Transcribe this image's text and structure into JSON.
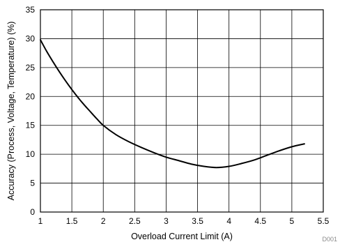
{
  "chart_data": {
    "type": "line",
    "title": "",
    "xlabel": "Overload Current Limit (A)",
    "ylabel": "Accuracy (Process, Voltage, Temperature) (%)",
    "xlim": [
      1,
      5.5
    ],
    "ylim": [
      0,
      35
    ],
    "x_ticks": [
      "1",
      "1.5",
      "2",
      "2.5",
      "3",
      "3.5",
      "4",
      "4.5",
      "5",
      "5.5"
    ],
    "y_ticks": [
      "0",
      "5",
      "10",
      "15",
      "20",
      "25",
      "30",
      "35"
    ],
    "grid": true,
    "legend": "none",
    "series": [
      {
        "x": [
          1.0,
          1.1,
          1.2,
          1.3,
          1.4,
          1.5,
          1.6,
          1.7,
          1.8,
          1.9,
          2.0,
          2.2,
          2.4,
          2.6,
          2.8,
          3.0,
          3.2,
          3.4,
          3.6,
          3.8,
          4.0,
          4.2,
          4.4,
          4.6,
          4.8,
          5.0,
          5.2
        ],
        "y": [
          29.8,
          27.8,
          26.0,
          24.3,
          22.7,
          21.2,
          19.8,
          18.5,
          17.3,
          16.1,
          15.0,
          13.4,
          12.2,
          11.2,
          10.3,
          9.5,
          8.9,
          8.3,
          7.9,
          7.7,
          7.9,
          8.4,
          9.0,
          9.8,
          10.6,
          11.3,
          11.8
        ],
        "color": "#000000"
      }
    ]
  },
  "figure_id": "D001"
}
